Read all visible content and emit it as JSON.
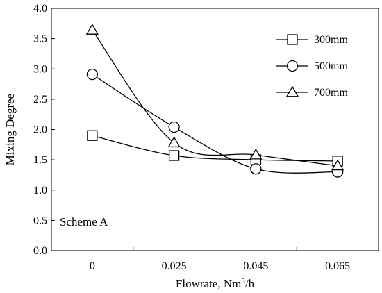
{
  "chart_data": {
    "type": "line",
    "smoothed": true,
    "title": "",
    "xlabel": "Flowrate, Nm",
    "xlabel_sup": "3",
    "xlabel_suffix": "/h",
    "ylabel": "Mixing Degree",
    "categories": [
      "0",
      "0.025",
      "0.045",
      "0.065"
    ],
    "ylim": [
      0,
      4
    ],
    "yticks": [
      "0.0",
      "0.5",
      "1.0",
      "1.5",
      "2.0",
      "2.5",
      "3.0",
      "3.5",
      "4.0"
    ],
    "grid": false,
    "legend_position": "top-right",
    "annotation": "Scheme A",
    "series": [
      {
        "name": "300mm",
        "marker": "square",
        "values": [
          1.9,
          1.57,
          1.5,
          1.48
        ]
      },
      {
        "name": "500mm",
        "marker": "circle",
        "values": [
          2.91,
          2.04,
          1.35,
          1.3
        ]
      },
      {
        "name": "700mm",
        "marker": "triangle",
        "values": [
          3.64,
          1.78,
          1.58,
          1.4
        ]
      }
    ]
  }
}
